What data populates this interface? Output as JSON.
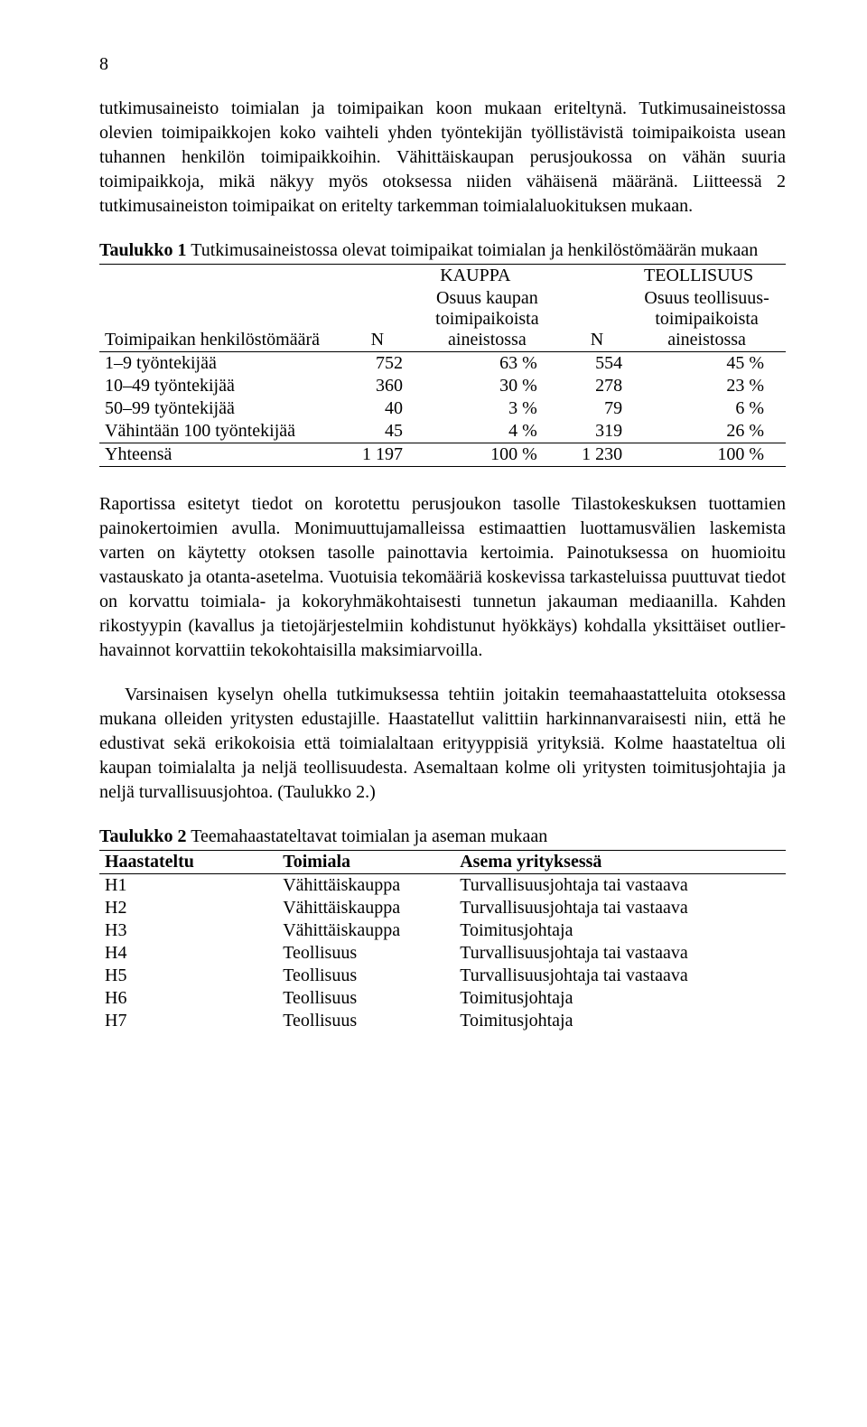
{
  "page_number": "8",
  "para1": "tutkimusaineisto toimialan ja toimipaikan koon mukaan eriteltynä. Tutkimusaineistossa olevien toimipaikkojen koko vaihteli yhden työntekijän työllistävistä toimipaikoista usean tuhannen henkilön toimipaikkoihin. Vähittäiskaupan perusjoukossa on vähän suuria toimipaikkoja, mikä näkyy myös otoksessa niiden vähäisenä määränä. Liitteessä 2 tutkimusaineiston toimipaikat on eritelty tarkemman toimialaluokituksen mukaan.",
  "table1": {
    "caption_bold": "Taulukko 1",
    "caption_rest": " Tutkimusaineistossa olevat toimipaikat toimialan ja henkilöstömäärän mukaan",
    "hdr_group1": "KAUPPA",
    "hdr_group2": "TEOLLISUUS",
    "hdr_rowlabel": "Toimipaikan henkilöstömäärä",
    "hdr_n": "N",
    "hdr_pct1": "Osuus kaupan toimipaikoista aineistossa",
    "hdr_pct2": "Osuus teollisuus-toimipaikoista aineistossa",
    "rows": [
      {
        "label": "1–9 työntekijää",
        "n1": "752",
        "p1": "63 %",
        "n2": "554",
        "p2": "45 %"
      },
      {
        "label": "10–49 työntekijää",
        "n1": "360",
        "p1": "30 %",
        "n2": "278",
        "p2": "23 %"
      },
      {
        "label": "50–99 työntekijää",
        "n1": "40",
        "p1": "3 %",
        "n2": "79",
        "p2": "6 %"
      },
      {
        "label": "Vähintään 100 työntekijää",
        "n1": "45",
        "p1": "4 %",
        "n2": "319",
        "p2": "26 %"
      }
    ],
    "foot": {
      "label": "Yhteensä",
      "n1": "1 197",
      "p1": "100 %",
      "n2": "1 230",
      "p2": "100 %"
    }
  },
  "para2": "Raportissa esitetyt tiedot on korotettu perusjoukon tasolle Tilastokeskuksen tuottamien painokertoimien avulla. Monimuuttujamalleissa estimaattien luottamusvälien laskemista varten on käytetty otoksen tasolle painottavia kertoimia. Painotuksessa on huomioitu vastauskato ja otanta-asetelma. Vuotuisia tekomääriä koskevissa tarkasteluissa puuttuvat tiedot on korvattu toimiala- ja kokoryhmäkohtaisesti tunnetun jakauman mediaanilla. Kahden rikostyypin (kavallus ja tietojärjestelmiin kohdistunut hyökkäys) kohdalla yksittäiset outlier-havainnot korvattiin tekokohtaisilla maksimiarvoilla.",
  "para3": "Varsinaisen kyselyn ohella tutkimuksessa tehtiin joitakin teemahaastatteluita otoksessa mukana olleiden yritysten edustajille. Haastatellut valittiin harkinnanvaraisesti niin, että he edustivat sekä erikokoisia että toimialaltaan erityyppisiä yrityksiä. Kolme haastateltua oli kaupan toimialalta ja neljä teollisuudesta. Asemaltaan kolme oli yritysten toimitusjohtajia ja neljä turvallisuusjohtoa. (Taulukko 2.)",
  "table2": {
    "caption_bold": "Taulukko 2",
    "caption_rest": " Teemahaastateltavat toimialan ja aseman mukaan",
    "hdr_a": "Haastateltu",
    "hdr_b": "Toimiala",
    "hdr_c": "Asema yrityksessä",
    "rows": [
      {
        "a": "H1",
        "b": "Vähittäiskauppa",
        "c": "Turvallisuusjohtaja tai vastaava"
      },
      {
        "a": "H2",
        "b": "Vähittäiskauppa",
        "c": "Turvallisuusjohtaja tai vastaava"
      },
      {
        "a": "H3",
        "b": "Vähittäiskauppa",
        "c": "Toimitusjohtaja"
      },
      {
        "a": "H4",
        "b": "Teollisuus",
        "c": "Turvallisuusjohtaja tai vastaava"
      },
      {
        "a": "H5",
        "b": "Teollisuus",
        "c": "Turvallisuusjohtaja tai vastaava"
      },
      {
        "a": "H6",
        "b": "Teollisuus",
        "c": "Toimitusjohtaja"
      },
      {
        "a": "H7",
        "b": "Teollisuus",
        "c": "Toimitusjohtaja"
      }
    ]
  }
}
